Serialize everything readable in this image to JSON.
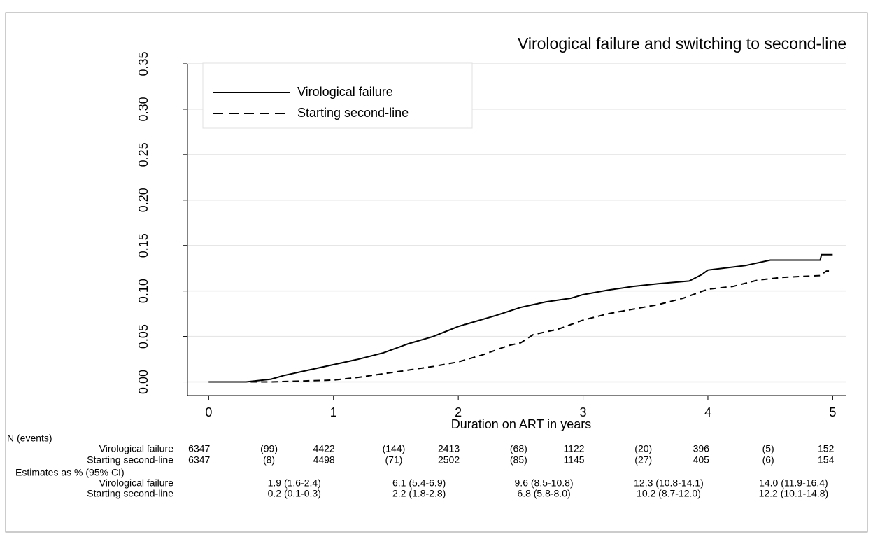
{
  "chart_data": {
    "type": "line",
    "title": "Virological failure and switching to second-line",
    "x_label": "Duration on ART in years",
    "xlim": [
      -0.17,
      5.11
    ],
    "xticks": [
      0,
      1,
      2,
      3,
      4,
      5
    ],
    "ylim": [
      -0.015,
      0.35
    ],
    "yticks": [
      {
        "value": 0,
        "label": "0.00"
      },
      {
        "value": 0.05,
        "label": "0.05"
      },
      {
        "value": 0.1,
        "label": "0.10"
      },
      {
        "value": 0.15,
        "label": "0.15"
      },
      {
        "value": 0.2,
        "label": "0.20"
      },
      {
        "value": 0.25,
        "label": "0.25"
      },
      {
        "value": 0.3,
        "label": "0.30"
      },
      {
        "value": 0.35,
        "label": "0.35"
      }
    ],
    "grid": true,
    "legend": "top-left",
    "series": [
      {
        "name": "Virological failure",
        "color": "#000000",
        "dash": "solid",
        "x": [
          0,
          0.3,
          0.5,
          0.6,
          0.8,
          1.0,
          1.2,
          1.4,
          1.6,
          1.8,
          2.0,
          2.1,
          2.3,
          2.5,
          2.7,
          2.9,
          3.0,
          3.2,
          3.4,
          3.6,
          3.85,
          3.95,
          4.0,
          4.3,
          4.5,
          4.9,
          4.91,
          5.0
        ],
        "values": [
          0,
          0,
          0.003,
          0.007,
          0.013,
          0.019,
          0.025,
          0.032,
          0.042,
          0.05,
          0.061,
          0.065,
          0.073,
          0.082,
          0.088,
          0.092,
          0.096,
          0.101,
          0.105,
          0.108,
          0.111,
          0.118,
          0.123,
          0.128,
          0.134,
          0.134,
          0.14,
          0.14
        ]
      },
      {
        "name": "Starting second-line",
        "color": "#000000",
        "dash": "dashed",
        "x": [
          0,
          0.5,
          1.0,
          1.2,
          1.4,
          1.6,
          1.8,
          2.0,
          2.2,
          2.4,
          2.5,
          2.6,
          2.8,
          3.0,
          3.2,
          3.4,
          3.6,
          3.8,
          4.0,
          4.2,
          4.4,
          4.6,
          4.9,
          4.95,
          5.0
        ],
        "values": [
          0,
          0,
          0.002,
          0.005,
          0.009,
          0.013,
          0.017,
          0.022,
          0.03,
          0.04,
          0.043,
          0.052,
          0.058,
          0.068,
          0.075,
          0.08,
          0.085,
          0.092,
          0.102,
          0.105,
          0.112,
          0.115,
          0.117,
          0.122,
          0.122
        ]
      }
    ],
    "risk_table": {
      "title": "N (events)",
      "rows": [
        {
          "name": "Virological failure",
          "cells": [
            "6347",
            "(99)",
            "4422",
            "(144)",
            "2413",
            "(68)",
            "1122",
            "(20)",
            "396",
            "(5)",
            "152"
          ]
        },
        {
          "name": "Starting second-line",
          "cells": [
            "6347",
            "(8)",
            "4498",
            "(71)",
            "2502",
            "(85)",
            "1145",
            "(27)",
            "405",
            "(6)",
            "154"
          ]
        }
      ]
    },
    "estimates_table": {
      "title": "Estimates as % (95% CI)",
      "rows": [
        {
          "name": "Virological failure",
          "cells": [
            "1.9 (1.6-2.4)",
            "6.1 (5.4-6.9)",
            "9.6 (8.5-10.8)",
            "12.3 (10.8-14.1)",
            "14.0 (11.9-16.4)"
          ]
        },
        {
          "name": "Starting second-line",
          "cells": [
            "0.2 (0.1-0.3)",
            "2.2 (1.8-2.8)",
            "6.8 (5.8-8.0)",
            "10.2 (8.7-12.0)",
            "12.2 (10.1-14.8)"
          ]
        }
      ]
    }
  }
}
